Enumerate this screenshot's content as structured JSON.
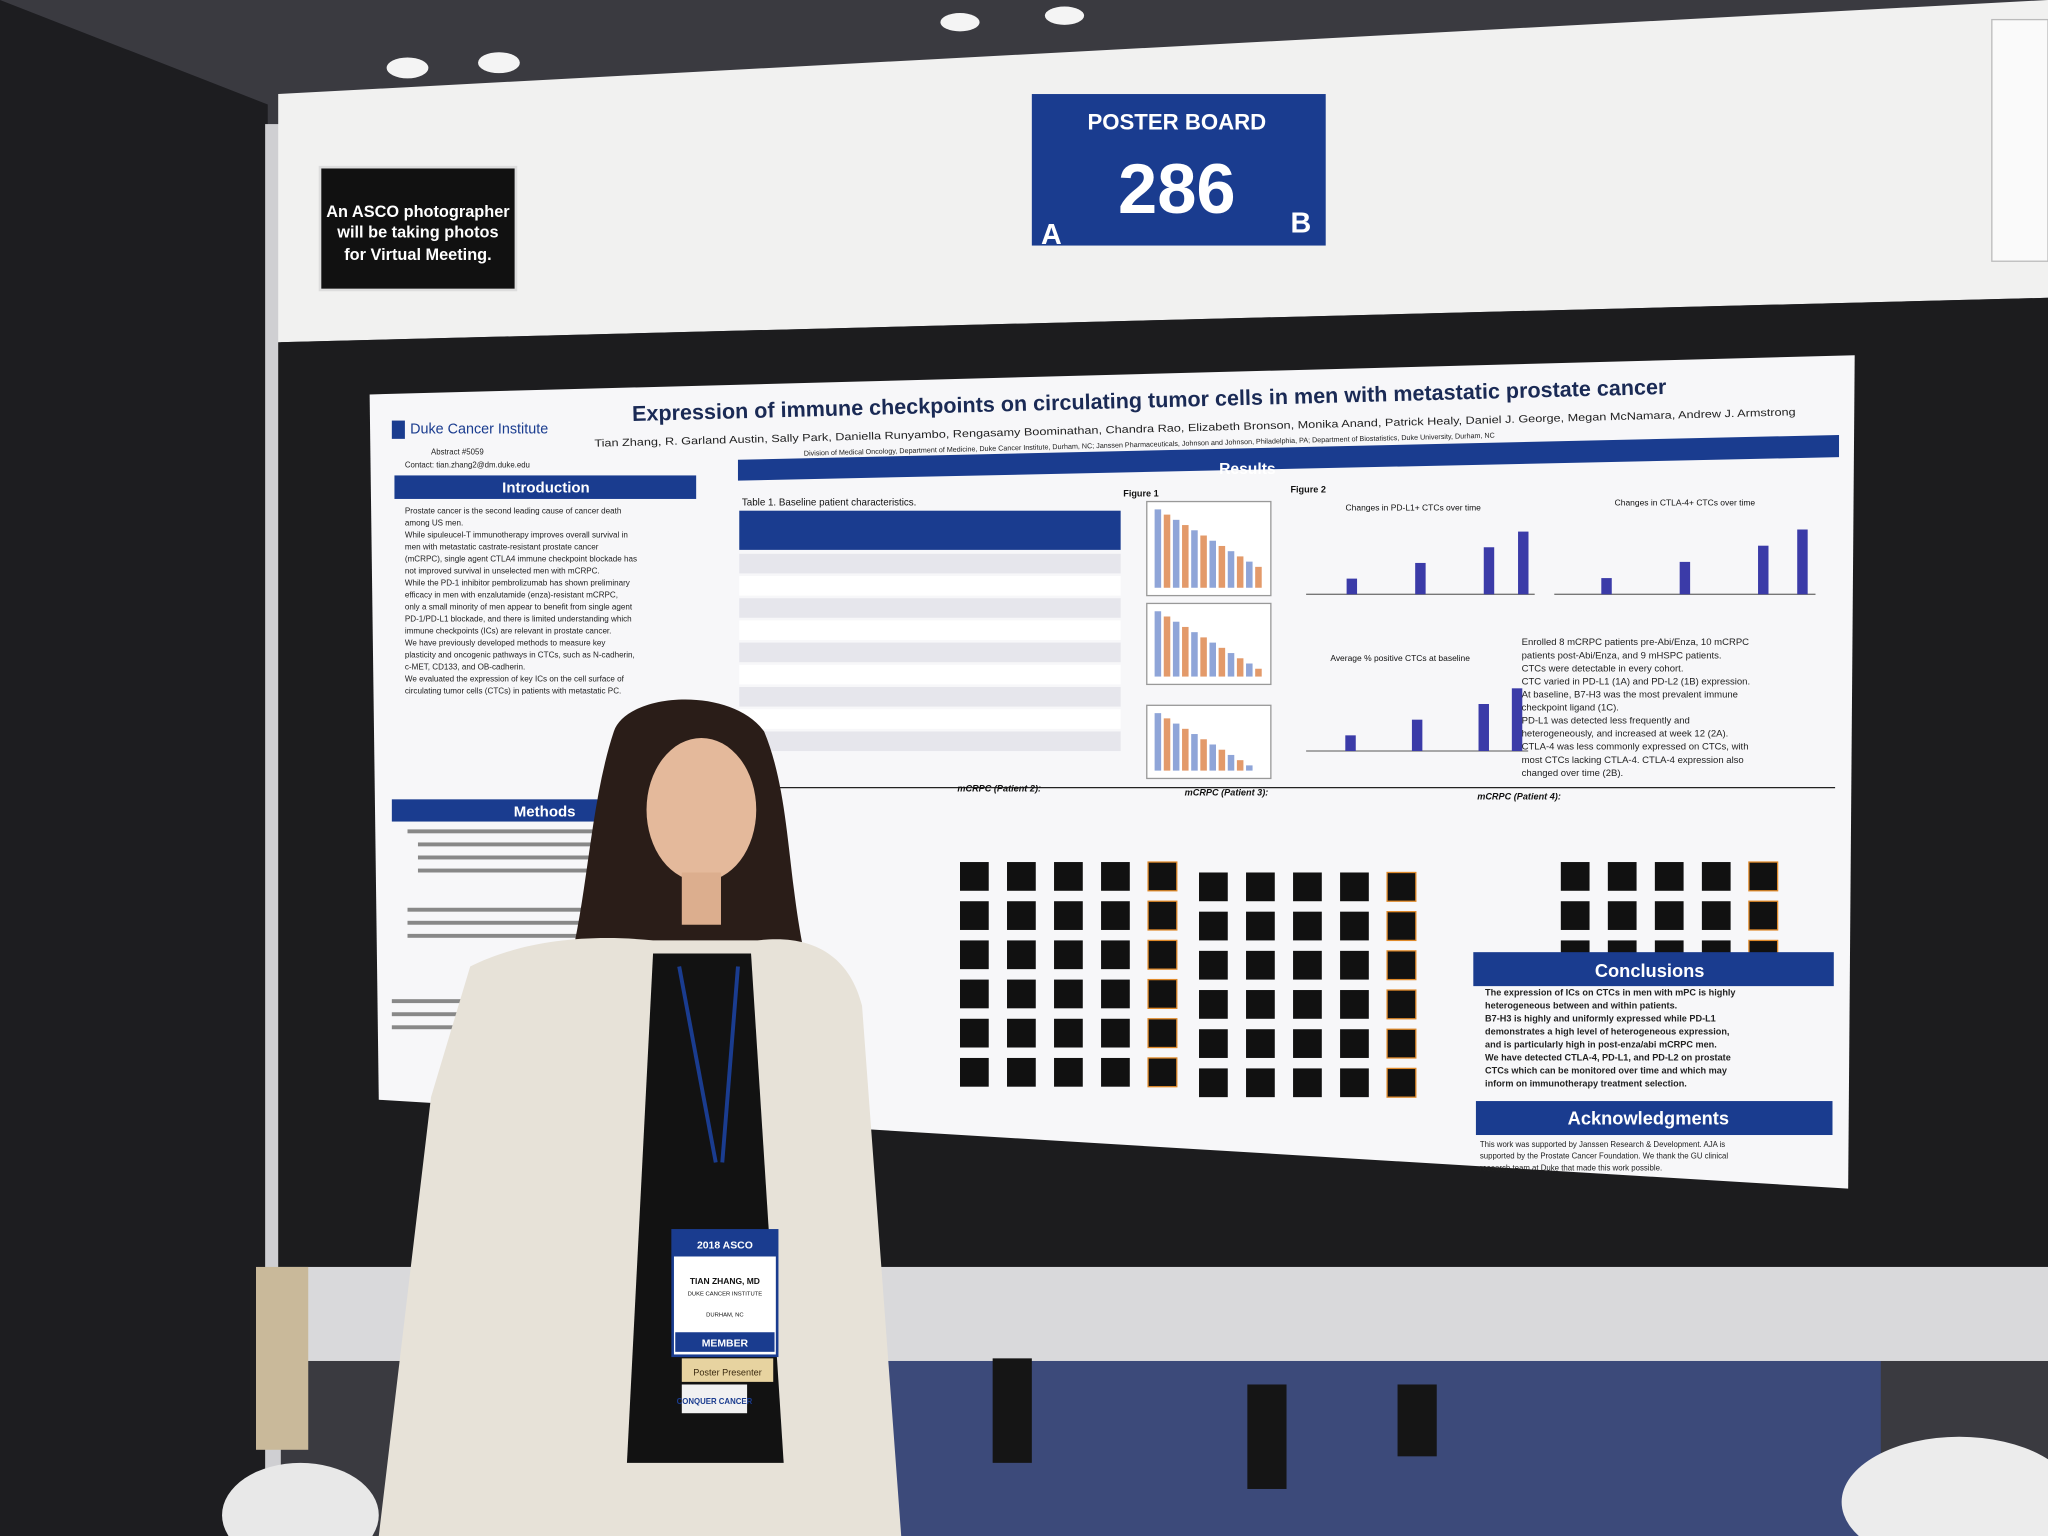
{
  "sign": [
    "An ASCO photographer",
    "will be taking photos",
    "for Virtual Meeting."
  ],
  "poster_board": {
    "label": "POSTER BOARD",
    "number": "286",
    "side_a": "A",
    "side_b": "B"
  },
  "poster": {
    "institute": "Duke Cancer Institute",
    "abstract": "Abstract #5059",
    "contact": "Contact: tian.zhang2@dm.duke.edu",
    "title": "Expression of immune checkpoints on circulating tumor cells in men with metastatic prostate cancer",
    "authors": "Tian Zhang, R. Garland Austin, Sally Park, Daniella Runyambo, Rengasamy Boominathan, Chandra Rao, Elizabeth Bronson, Monika Anand, Patrick Healy, Daniel J. George, Megan McNamara, Andrew J. Armstrong",
    "affiliations": "Division of Medical Oncology, Department of Medicine, Duke Cancer Institute, Durham, NC; Janssen Pharmaceuticals, Johnson and Johnson, Philadelphia, PA; Department of Biostatistics, Duke University, Durham, NC",
    "headings": {
      "introduction": "Introduction",
      "methods": "Methods",
      "results": "Results",
      "conclusions": "Conclusions",
      "acknowledgments": "Acknowledgments"
    },
    "intro_lines": [
      "Prostate cancer is the second leading cause of cancer death",
      "among US men.",
      "While sipuleucel-T immunotherapy improves overall survival in",
      "men with metastatic castrate-resistant prostate cancer",
      "(mCRPC), single agent CTLA4 immune checkpoint blockade has",
      "not improved survival in unselected men with mCRPC.",
      "While the PD-1 inhibitor pembrolizumab has shown preliminary",
      "efficacy in men with enzalutamide (enza)-resistant mCRPC,",
      "only a small minority of men appear to benefit from single agent",
      "PD-1/PD-L1 blockade, and there is limited understanding which",
      "immune checkpoints (ICs) are relevant in prostate cancer.",
      "We have previously developed methods to measure key",
      "plasticity and oncogenic pathways in CTCs, such as N-cadherin,",
      "c-MET, CD133, and OB-cadherin.",
      "We evaluated the expression of key ICs on the cell surface of",
      "circulating tumor cells (CTCs) in patients with metastatic PC."
    ],
    "table_caption": "Table 1. Baseline patient characteristics.",
    "figure_labels": [
      "Figure 1",
      "Figure 2",
      "Changes in PD-L1+ CTCs over time",
      "Changes in CTLA-4+ CTCs over time",
      "Average % positive CTCs at baseline"
    ],
    "results_lines": [
      "Enrolled 8 mCRPC patients pre-Abi/Enza, 10 mCRPC",
      "patients post-Abi/Enza, and 9 mHSPC patients.",
      "CTCs were detectable in every cohort.",
      "CTC varied in PD-L1 (1A) and PD-L2 (1B) expression.",
      "At baseline, B7-H3 was the most prevalent immune",
      "checkpoint ligand (1C).",
      "PD-L1 was detected less frequently and",
      "heterogeneously, and increased at week 12 (2A).",
      "CTLA-4 was less commonly expressed on CTCs, with",
      "most CTCs lacking CTLA-4. CTLA-4 expression also",
      "changed over time (2B)."
    ],
    "patient_headings": [
      "mCRPC (Patient 2):",
      "mCRPC (Patient 3):",
      "mCRPC (Patient 4):"
    ],
    "conclusion_lines": [
      "The expression of ICs on CTCs in men with mPC is highly",
      "heterogeneous between and within patients.",
      "B7-H3 is highly and uniformly expressed while PD-L1",
      "demonstrates a high level of heterogeneous expression,",
      "and is particularly high in post-enza/abi mCRPC men.",
      "We have detected CTLA-4, PD-L1, and PD-L2 on prostate",
      "CTCs which can be monitored over time and which may",
      "inform on immunotherapy treatment selection."
    ],
    "ack_lines": [
      "This work was supported by Janssen Research & Development. AJA is",
      "supported by the Prostate Cancer Foundation. We thank the GU clinical",
      "research team at Duke that made this work possible."
    ]
  },
  "badge": {
    "meeting": "2018 ASCO",
    "name": "TIAN ZHANG, MD",
    "org": "DUKE CANCER INSTITUTE",
    "city": "DURHAM, NC",
    "member": "MEMBER",
    "ribbon": "Poster Presenter",
    "conquer": "CONQUER CANCER"
  }
}
